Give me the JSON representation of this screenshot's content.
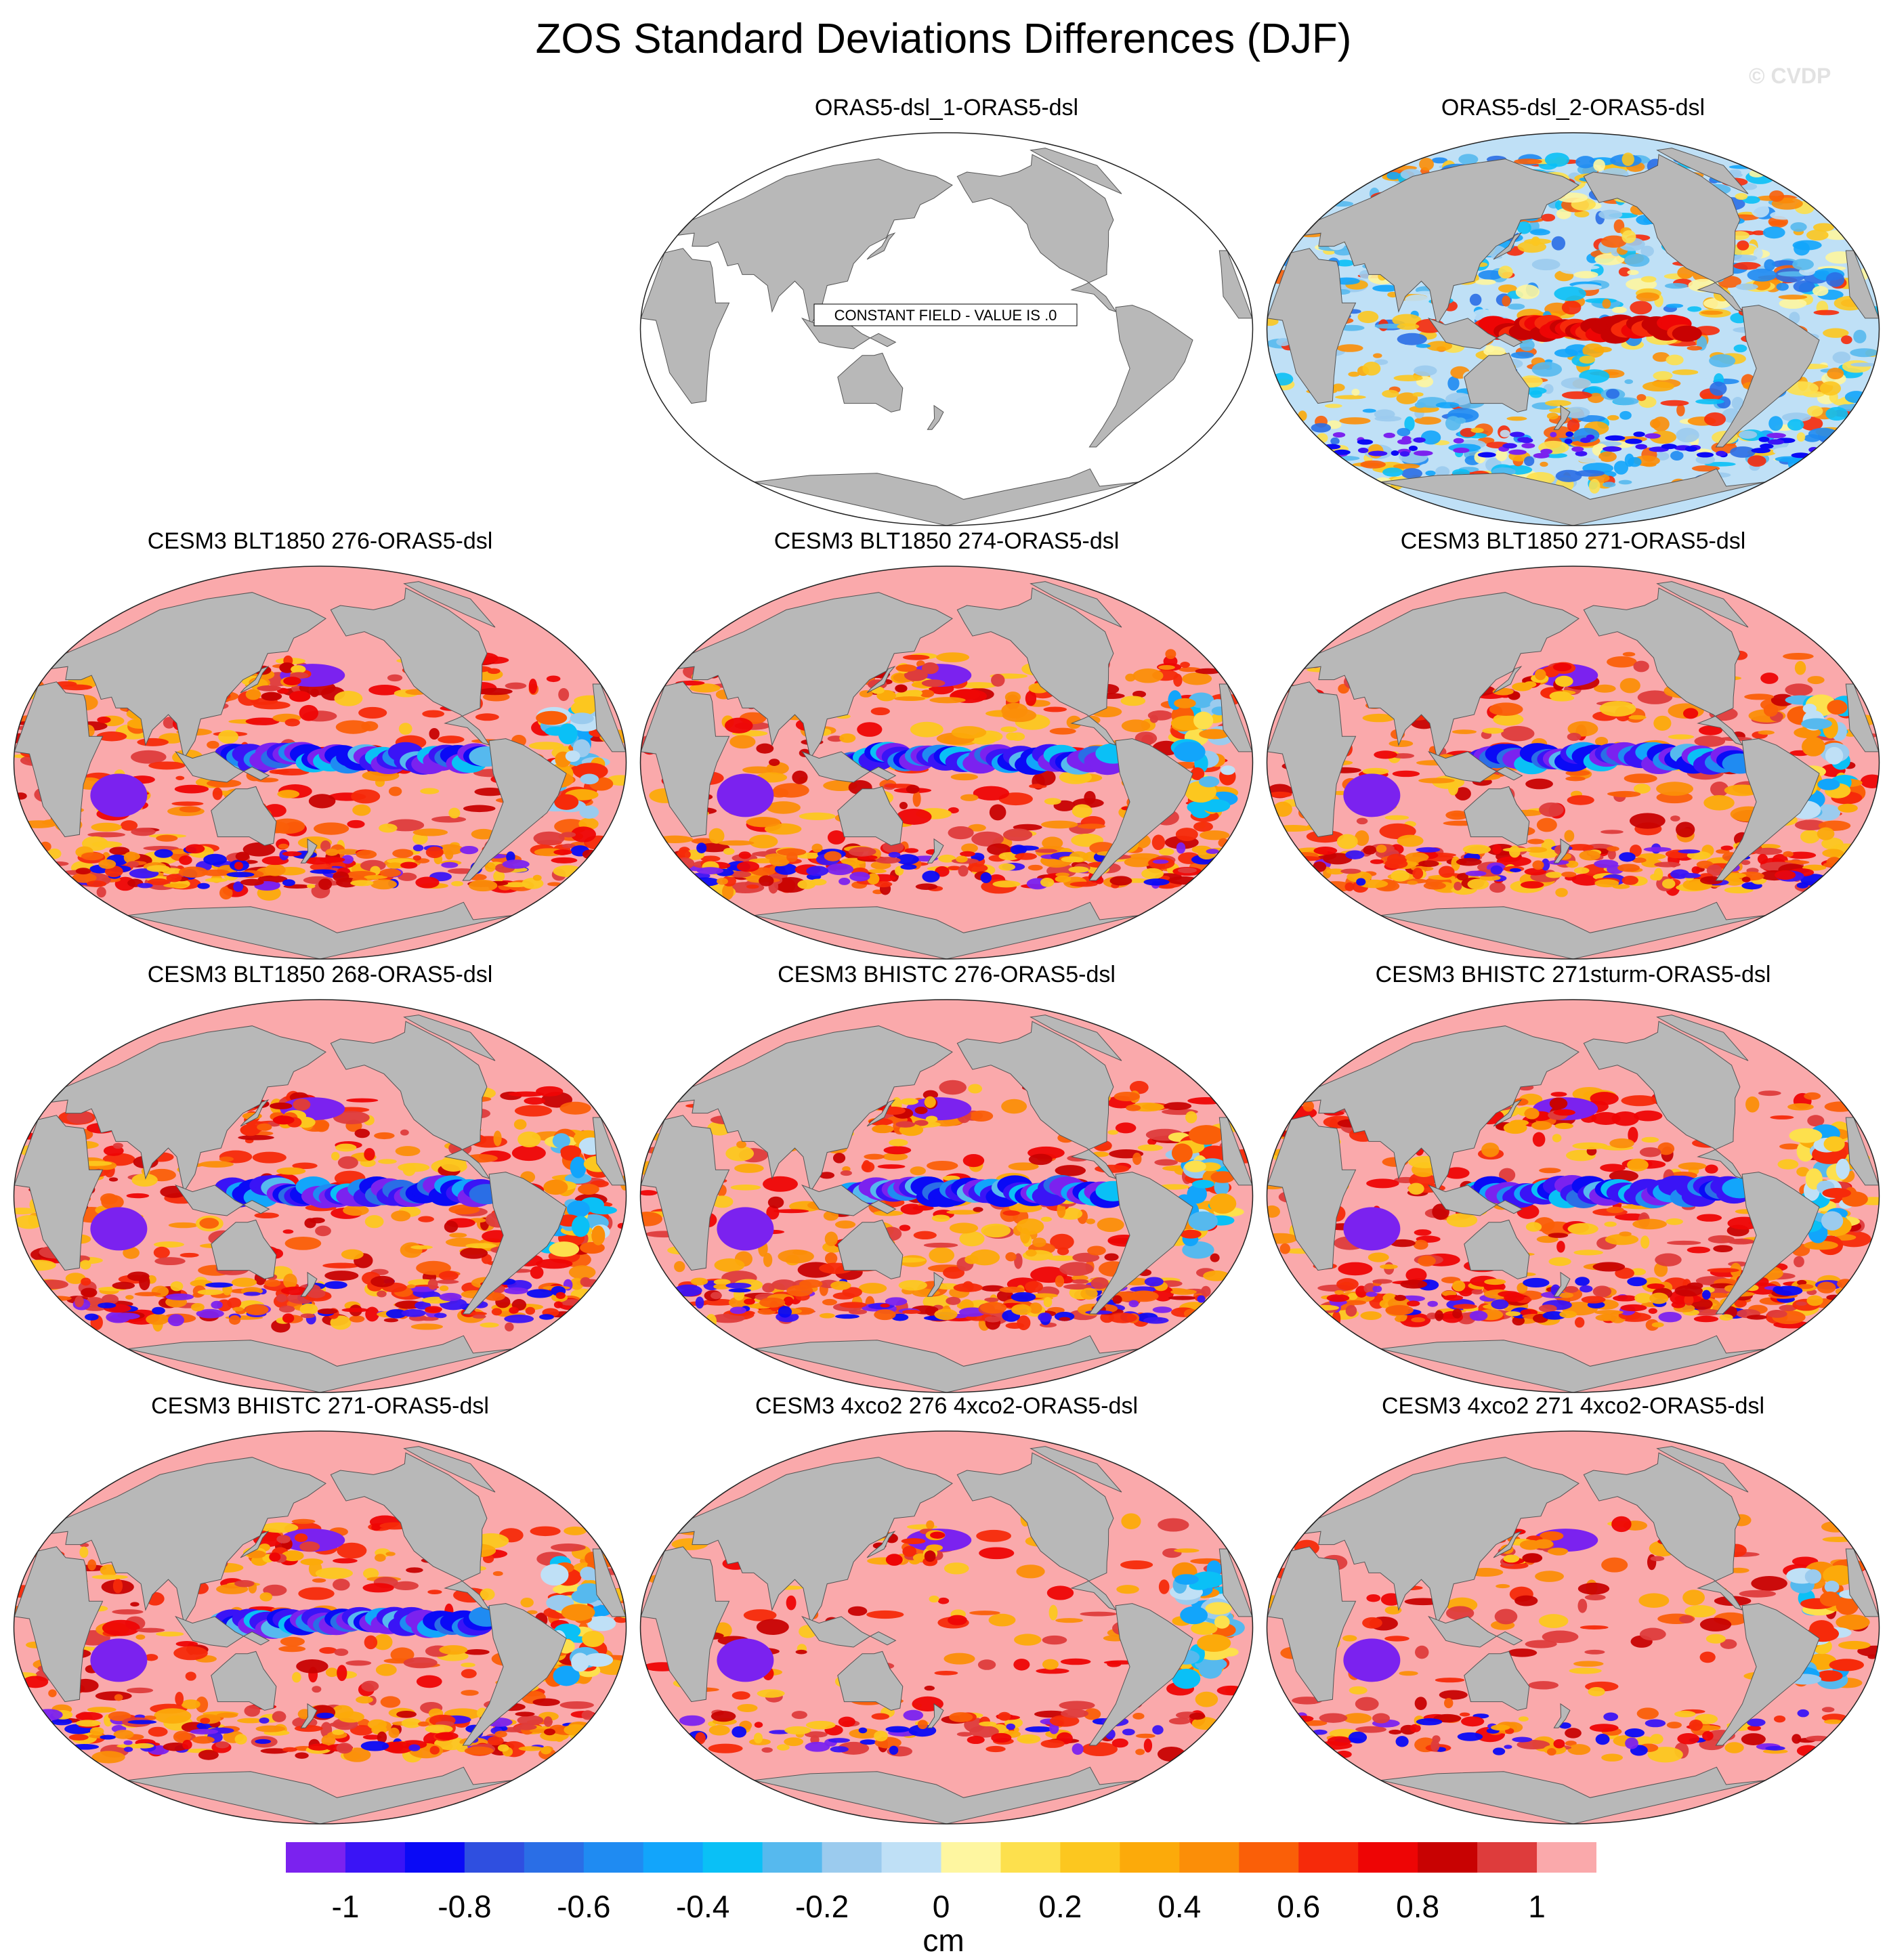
{
  "title": "ZOS Standard Deviations Differences (DJF)",
  "credit": "© CVDP",
  "panels": [
    {
      "label": "ORAS5-dsl_1-ORAS5-dsl",
      "type": "constant",
      "note": "CONSTANT FIELD - VALUE IS .0"
    },
    {
      "label": "ORAS5-dsl_2-ORAS5-dsl",
      "type": "mixed"
    },
    {
      "label": "CESM3 BLT1850 276-ORAS5-dsl",
      "type": "model"
    },
    {
      "label": "CESM3 BLT1850 274-ORAS5-dsl",
      "type": "model"
    },
    {
      "label": "CESM3 BLT1850 271-ORAS5-dsl",
      "type": "model"
    },
    {
      "label": "CESM3 BLT1850 268-ORAS5-dsl",
      "type": "model"
    },
    {
      "label": "CESM3 BHISTC 276-ORAS5-dsl",
      "type": "model"
    },
    {
      "label": "CESM3 BHISTC 271sturm-ORAS5-dsl",
      "type": "model"
    },
    {
      "label": "CESM3 BHISTC 271-ORAS5-dsl",
      "type": "model"
    },
    {
      "label": "CESM3 4xco2 276 4xco2-ORAS5-dsl",
      "type": "model4x"
    },
    {
      "label": "CESM3 4xco2 271 4xco2-ORAS5-dsl",
      "type": "model4x"
    }
  ],
  "colorbar": {
    "colors": [
      "#7b22ef",
      "#3a14f6",
      "#0a0af6",
      "#2f4fe0",
      "#2a6ee6",
      "#1f8bf2",
      "#12a5fb",
      "#0ac0f6",
      "#56b9ee",
      "#9bcbee",
      "#bfe0f6",
      "#fef6a0",
      "#fde04d",
      "#fcc71f",
      "#fcaa0a",
      "#fb8e08",
      "#fa5f08",
      "#f62a0a",
      "#ee0505",
      "#c80202",
      "#de3c3c",
      "#faa9ab"
    ],
    "tick_labels": [
      "-1",
      "-0.8",
      "-0.6",
      "-0.4",
      "-0.2",
      "0",
      "0.2",
      "0.4",
      "0.6",
      "0.8",
      "1"
    ],
    "unit": "cm"
  }
}
